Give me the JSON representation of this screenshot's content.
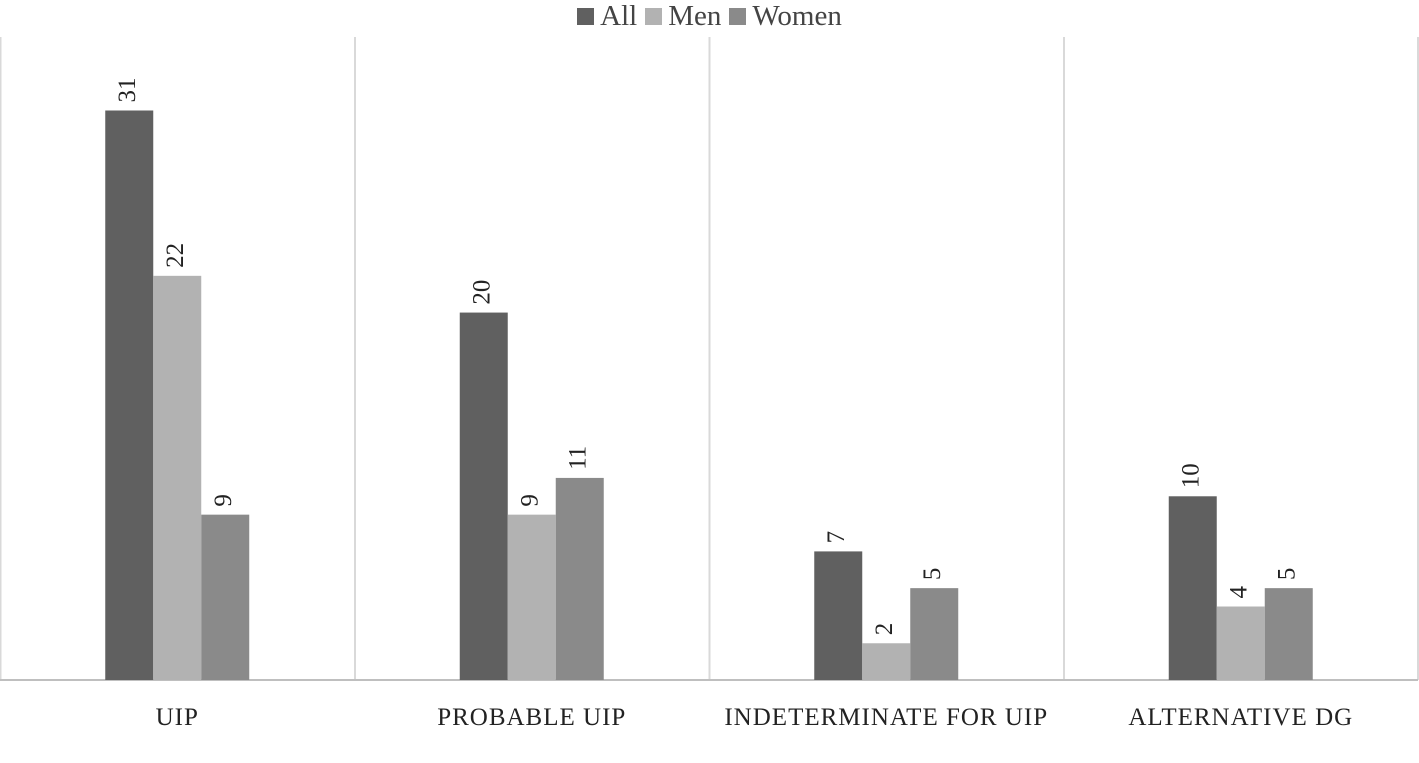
{
  "chart_data": {
    "type": "bar",
    "categories": [
      "UIP",
      "PROBABLE UIP",
      "INDETERMINATE FOR UIP",
      "ALTERNATIVE DG"
    ],
    "series": [
      {
        "name": "All",
        "color": "#606060",
        "values": [
          31,
          20,
          7,
          10
        ]
      },
      {
        "name": "Men",
        "color": "#b2b2b2",
        "values": [
          22,
          9,
          2,
          4
        ]
      },
      {
        "name": "Women",
        "color": "#8a8a8a",
        "values": [
          9,
          11,
          5,
          5
        ]
      }
    ],
    "ylim": [
      0,
      35
    ],
    "legend": "top"
  }
}
